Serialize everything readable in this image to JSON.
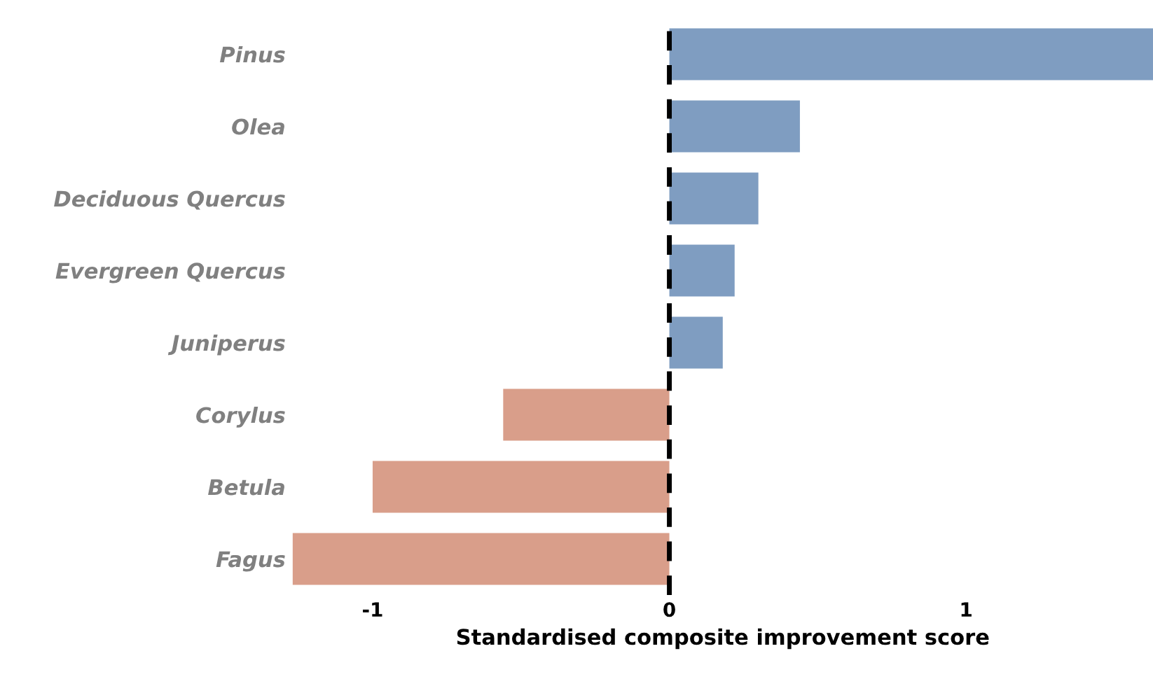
{
  "chart_data": {
    "type": "bar",
    "orientation": "horizontal",
    "categories": [
      "Pinus",
      "Olea",
      "Deciduous Quercus",
      "Evergreen Quercus",
      "Juniperus",
      "Corylus",
      "Betula",
      "Fagus"
    ],
    "values": [
      1.63,
      0.44,
      0.3,
      0.22,
      0.18,
      -0.56,
      -1.0,
      -1.27
    ],
    "colors": [
      "#7f9dc1",
      "#7f9dc1",
      "#7f9dc1",
      "#7f9dc1",
      "#7f9dc1",
      "#d99e8a",
      "#d99e8a",
      "#d99e8a"
    ],
    "xlabel": "Standardised composite improvement score",
    "xlim": [
      -1.27,
      1.63
    ],
    "xticks": [
      -1,
      0,
      1
    ],
    "ref_lines": [
      {
        "axis": "x",
        "value": 0,
        "color": "#000000",
        "line_style": "dashed"
      }
    ],
    "grid": false,
    "legend": false
  }
}
